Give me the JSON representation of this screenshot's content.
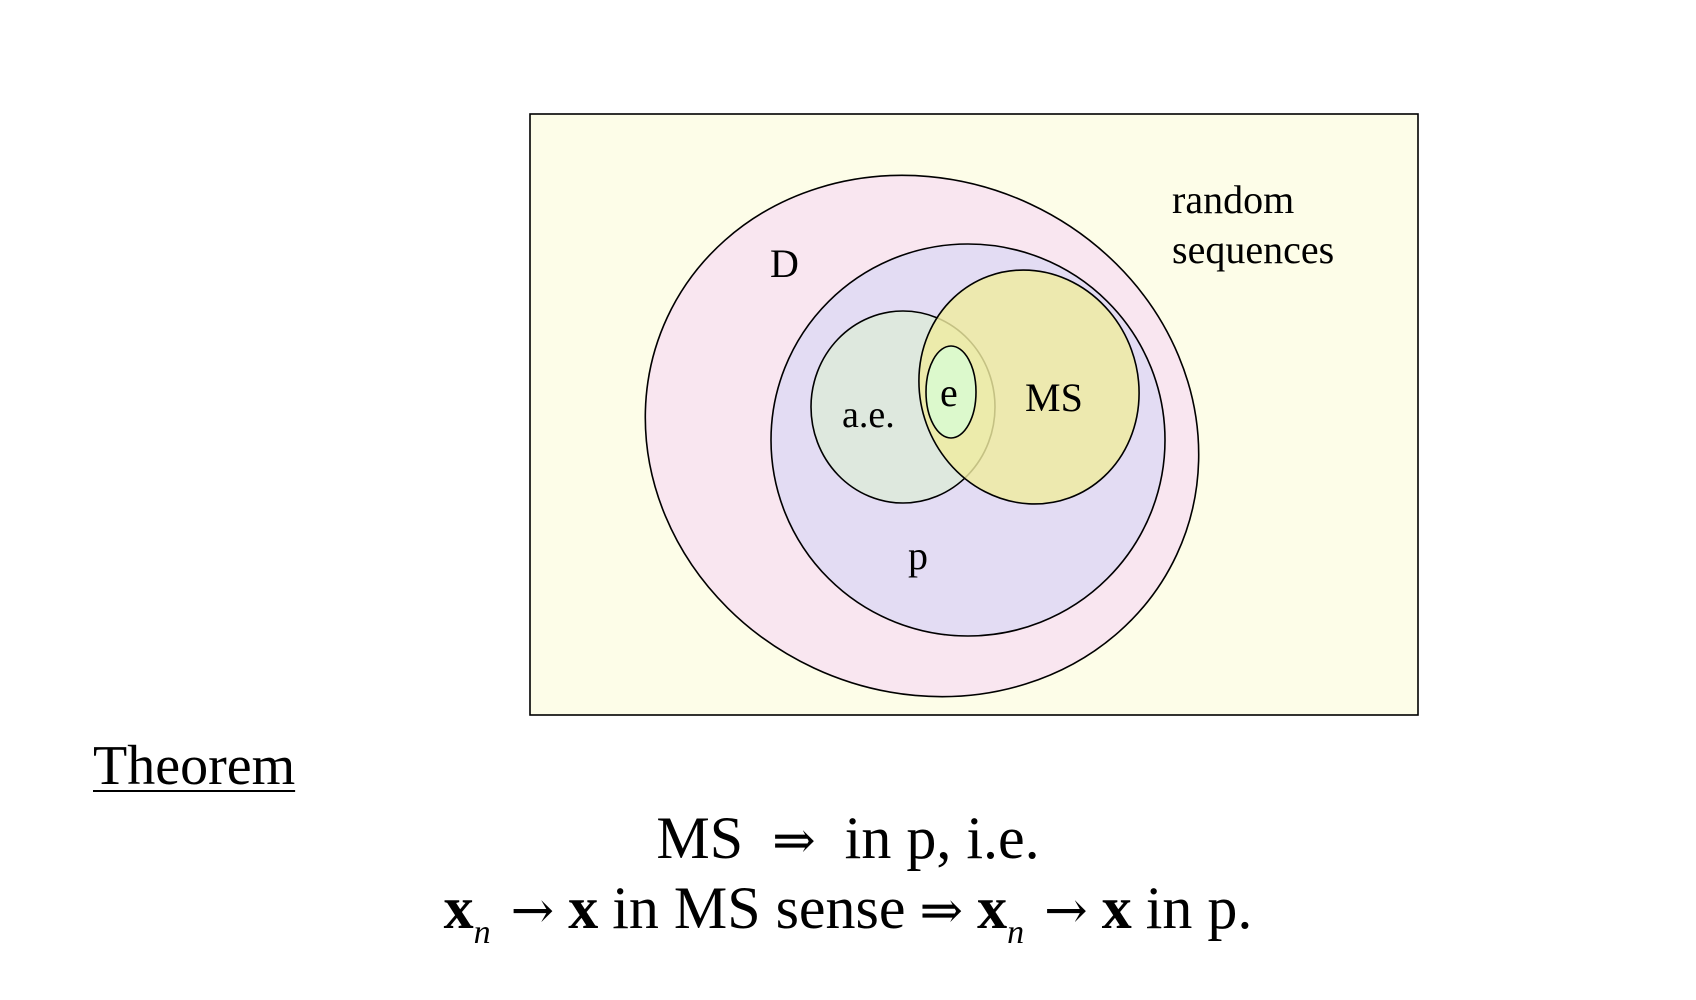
{
  "diagram": {
    "frame_label_line1": "random",
    "frame_label_line2": "sequences",
    "set_labels": {
      "D": "D",
      "p": "p",
      "ae": "a.e.",
      "ms": "MS",
      "e": "e"
    },
    "colors": {
      "frame_fill": "#fdfde8",
      "D_fill": "#f9e6f0",
      "p_fill": "#e3dcf3",
      "ae_fill": "#dde9dc",
      "ms_fill": "#efeba0",
      "e_fill": "#dcf9cc",
      "stroke": "#000000"
    }
  },
  "theorem": {
    "heading": "Theorem",
    "line1": {
      "lhs": "MS",
      "implies": "⇒",
      "rhs": "in p, i.e."
    },
    "line2": {
      "x": "x",
      "n": "n",
      "to": "→",
      "in_ms_sense": "in MS sense",
      "implies": "⇒",
      "in_p": "in p."
    }
  }
}
